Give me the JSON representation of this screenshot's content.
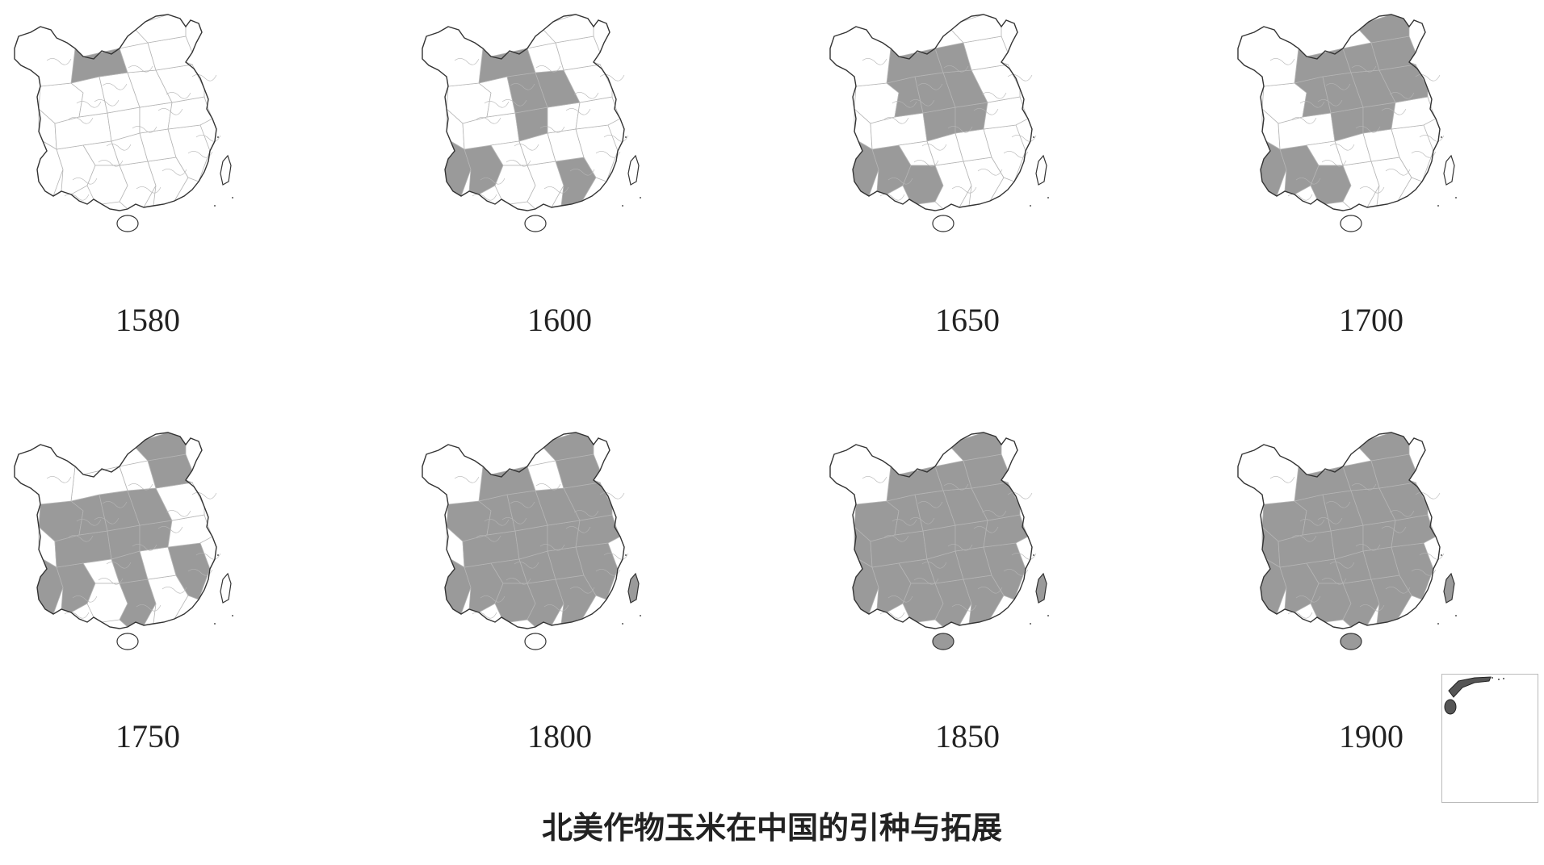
{
  "title": "北美作物玉米在中国的引种与拓展",
  "colors": {
    "filled": "#9a9a9a",
    "empty": "#ffffff",
    "boundary": "#333333",
    "inner_boundary": "#b5b5b5"
  },
  "maps": [
    {
      "year": "1580",
      "filled_share": 0.03
    },
    {
      "year": "1600",
      "filled_share": 0.12
    },
    {
      "year": "1650",
      "filled_share": 0.15
    },
    {
      "year": "1700",
      "filled_share": 0.25
    },
    {
      "year": "1750",
      "filled_share": 0.32
    },
    {
      "year": "1800",
      "filled_share": 0.55
    },
    {
      "year": "1850",
      "filled_share": 0.78
    },
    {
      "year": "1900",
      "filled_share": 0.95
    }
  ]
}
